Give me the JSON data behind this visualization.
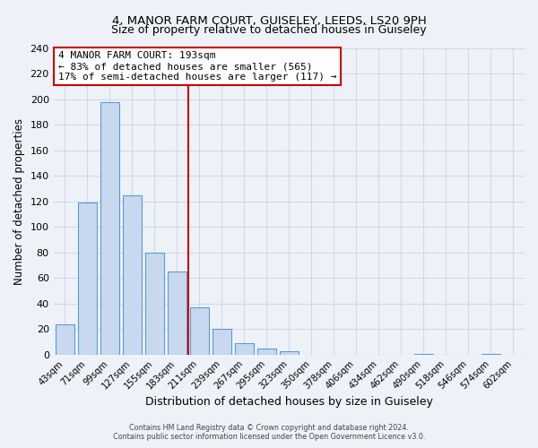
{
  "title": "4, MANOR FARM COURT, GUISELEY, LEEDS, LS20 9PH",
  "subtitle": "Size of property relative to detached houses in Guiseley",
  "xlabel": "Distribution of detached houses by size in Guiseley",
  "ylabel": "Number of detached properties",
  "bar_labels": [
    "43sqm",
    "71sqm",
    "99sqm",
    "127sqm",
    "155sqm",
    "183sqm",
    "211sqm",
    "239sqm",
    "267sqm",
    "295sqm",
    "323sqm",
    "350sqm",
    "378sqm",
    "406sqm",
    "434sqm",
    "462sqm",
    "490sqm",
    "518sqm",
    "546sqm",
    "574sqm",
    "602sqm"
  ],
  "bar_heights": [
    24,
    119,
    198,
    125,
    80,
    65,
    37,
    20,
    9,
    5,
    3,
    0,
    0,
    0,
    0,
    0,
    1,
    0,
    0,
    1,
    0
  ],
  "bar_color": "#c8d8ee",
  "bar_edge_color": "#5b9bd5",
  "vline_x_idx": 6,
  "vline_color": "#cc0000",
  "annotation_title": "4 MANOR FARM COURT: 193sqm",
  "annotation_line1": "← 83% of detached houses are smaller (565)",
  "annotation_line2": "17% of semi-detached houses are larger (117) →",
  "annotation_box_color": "#ffffff",
  "annotation_box_edge": "#cc0000",
  "ylim": [
    0,
    240
  ],
  "yticks": [
    0,
    20,
    40,
    60,
    80,
    100,
    120,
    140,
    160,
    180,
    200,
    220,
    240
  ],
  "footer1": "Contains HM Land Registry data © Crown copyright and database right 2024.",
  "footer2": "Contains public sector information licensed under the Open Government Licence v3.0.",
  "bg_color": "#eef2f8",
  "grid_color": "#d0d8e8",
  "title_fontsize": 9.5,
  "subtitle_fontsize": 9
}
